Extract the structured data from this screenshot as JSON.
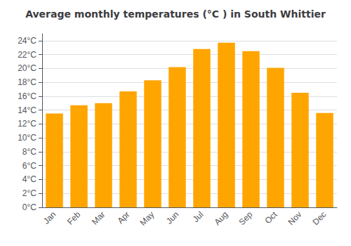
{
  "chart_data": {
    "type": "bar",
    "title": "Average monthly temperatures (°C ) in South Whittier",
    "categories": [
      "Jan",
      "Feb",
      "Mar",
      "Apr",
      "May",
      "Jun",
      "Jul",
      "Aug",
      "Sep",
      "Oct",
      "Nov",
      "Dec"
    ],
    "values": [
      13.5,
      14.7,
      15.0,
      16.7,
      18.3,
      20.2,
      22.8,
      23.7,
      22.5,
      20.1,
      16.5,
      13.6
    ],
    "color": "#FFA500",
    "ylim": [
      0,
      25
    ],
    "yticks": [
      {
        "value": 0,
        "label": "0°C"
      },
      {
        "value": 2,
        "label": "2°C"
      },
      {
        "value": 4,
        "label": "4°C"
      },
      {
        "value": 6,
        "label": "6°C"
      },
      {
        "value": 8,
        "label": "8°C"
      },
      {
        "value": 10,
        "label": "10°C"
      },
      {
        "value": 12,
        "label": "12°C"
      },
      {
        "value": 14,
        "label": "14°C"
      },
      {
        "value": 16,
        "label": "16°C"
      },
      {
        "value": 18,
        "label": "18°C"
      },
      {
        "value": 20,
        "label": "20°C"
      },
      {
        "value": 22,
        "label": "22°C"
      },
      {
        "value": 24,
        "label": "24°C"
      }
    ],
    "grid": true
  }
}
